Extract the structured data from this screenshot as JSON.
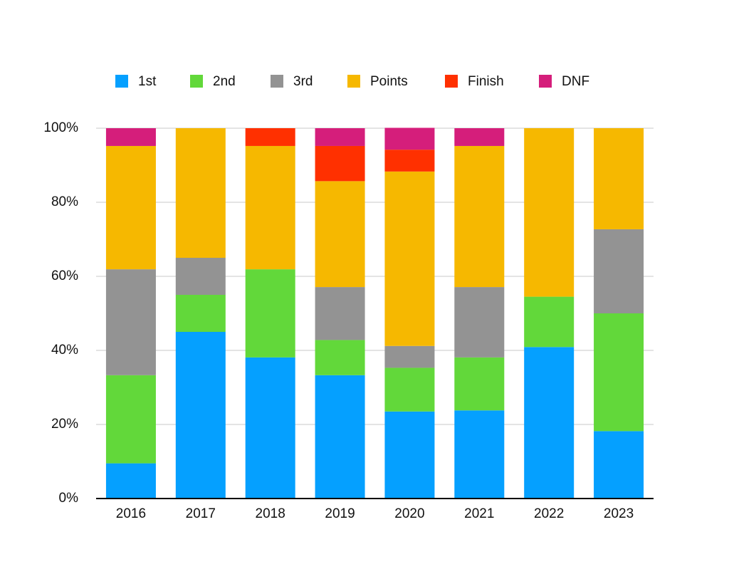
{
  "chart_data": {
    "type": "stacked_bar",
    "categories": [
      "2016",
      "2017",
      "2018",
      "2019",
      "2020",
      "2021",
      "2022",
      "2023"
    ],
    "series": [
      {
        "name": "1st",
        "color": "#05a0ff",
        "values": [
          9.5,
          45,
          38.1,
          33.3,
          23.5,
          23.8,
          40.9,
          18.2
        ]
      },
      {
        "name": "2nd",
        "color": "#62d83a",
        "values": [
          23.8,
          10,
          23.8,
          9.5,
          11.8,
          14.3,
          13.6,
          31.8
        ]
      },
      {
        "name": "3rd",
        "color": "#939393",
        "values": [
          28.6,
          10,
          0,
          14.3,
          5.9,
          19.0,
          0,
          22.7
        ]
      },
      {
        "name": "Points",
        "color": "#f6b800",
        "values": [
          33.3,
          35,
          33.3,
          28.6,
          47.1,
          38.1,
          45.5,
          27.3
        ]
      },
      {
        "name": "Finish",
        "color": "#ff3000",
        "values": [
          0,
          0,
          4.8,
          9.5,
          5.9,
          0,
          0,
          0
        ]
      },
      {
        "name": "DNF",
        "color": "#d51e7b",
        "values": [
          4.8,
          0,
          0,
          4.8,
          5.9,
          4.8,
          0,
          0
        ]
      }
    ],
    "ylim": [
      0,
      100
    ],
    "yticks": [
      {
        "value": 0,
        "label": "0%"
      },
      {
        "value": 20,
        "label": "20%"
      },
      {
        "value": 40,
        "label": "40%"
      },
      {
        "value": 60,
        "label": "60%"
      },
      {
        "value": 80,
        "label": "80%"
      },
      {
        "value": 100,
        "label": "100%"
      }
    ],
    "grid": true
  }
}
